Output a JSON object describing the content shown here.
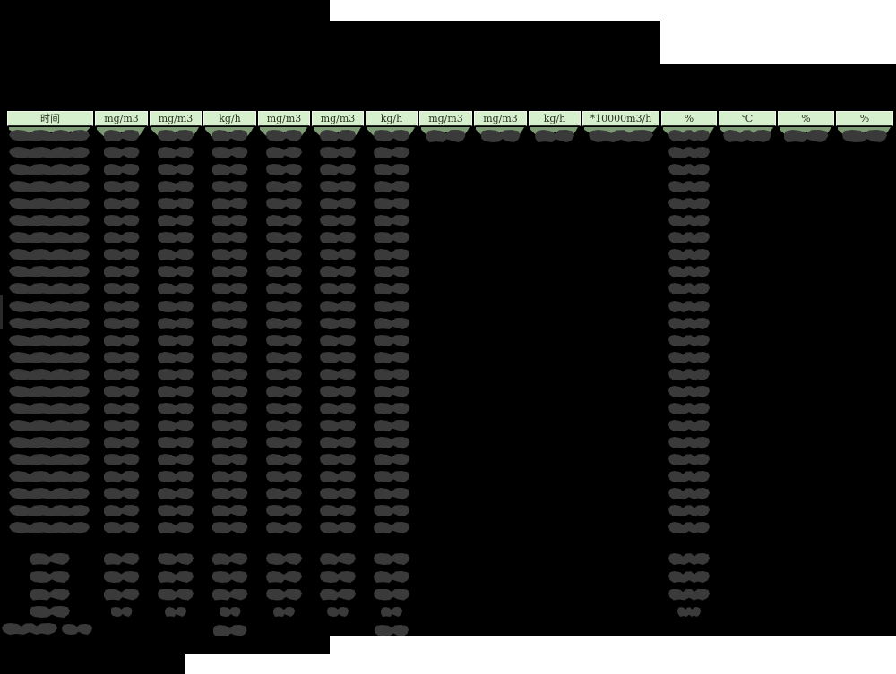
{
  "app": {
    "type": "monitoring-data-table",
    "description": "Redacted continuous emissions monitoring data sheet on black background"
  },
  "colors": {
    "background": "#000000",
    "header_fill": "#d6efcc",
    "header_border_light": "#eef9e9",
    "header_text": "#2a331f",
    "first_row_green": "#7d9b74",
    "redaction_blob": "#3a3a3a",
    "white_area": "#ffffff"
  },
  "table": {
    "header_labels": [
      "时间",
      "mg/m3",
      "mg/m3",
      "kg/h",
      "mg/m3",
      "mg/m3",
      "kg/h",
      "mg/m3",
      "mg/m3",
      "kg/h",
      "*10000m3/h",
      "%",
      "℃",
      "%",
      "%"
    ],
    "body": {
      "data_row_count": 24,
      "values_redacted": true,
      "columns_redacted_every_row": [
        1,
        2,
        3,
        4,
        5,
        6,
        7,
        12
      ],
      "columns_redacted_first_row_only": [
        8,
        9,
        10,
        11,
        13,
        14,
        15
      ]
    },
    "summary": {
      "row_count": 4,
      "label_column_redacted": true,
      "columns_redacted": [
        1,
        2,
        3,
        4,
        5,
        6,
        7,
        12
      ]
    },
    "footer": {
      "label_redacted": true,
      "columns_redacted": [
        4,
        7
      ]
    }
  }
}
